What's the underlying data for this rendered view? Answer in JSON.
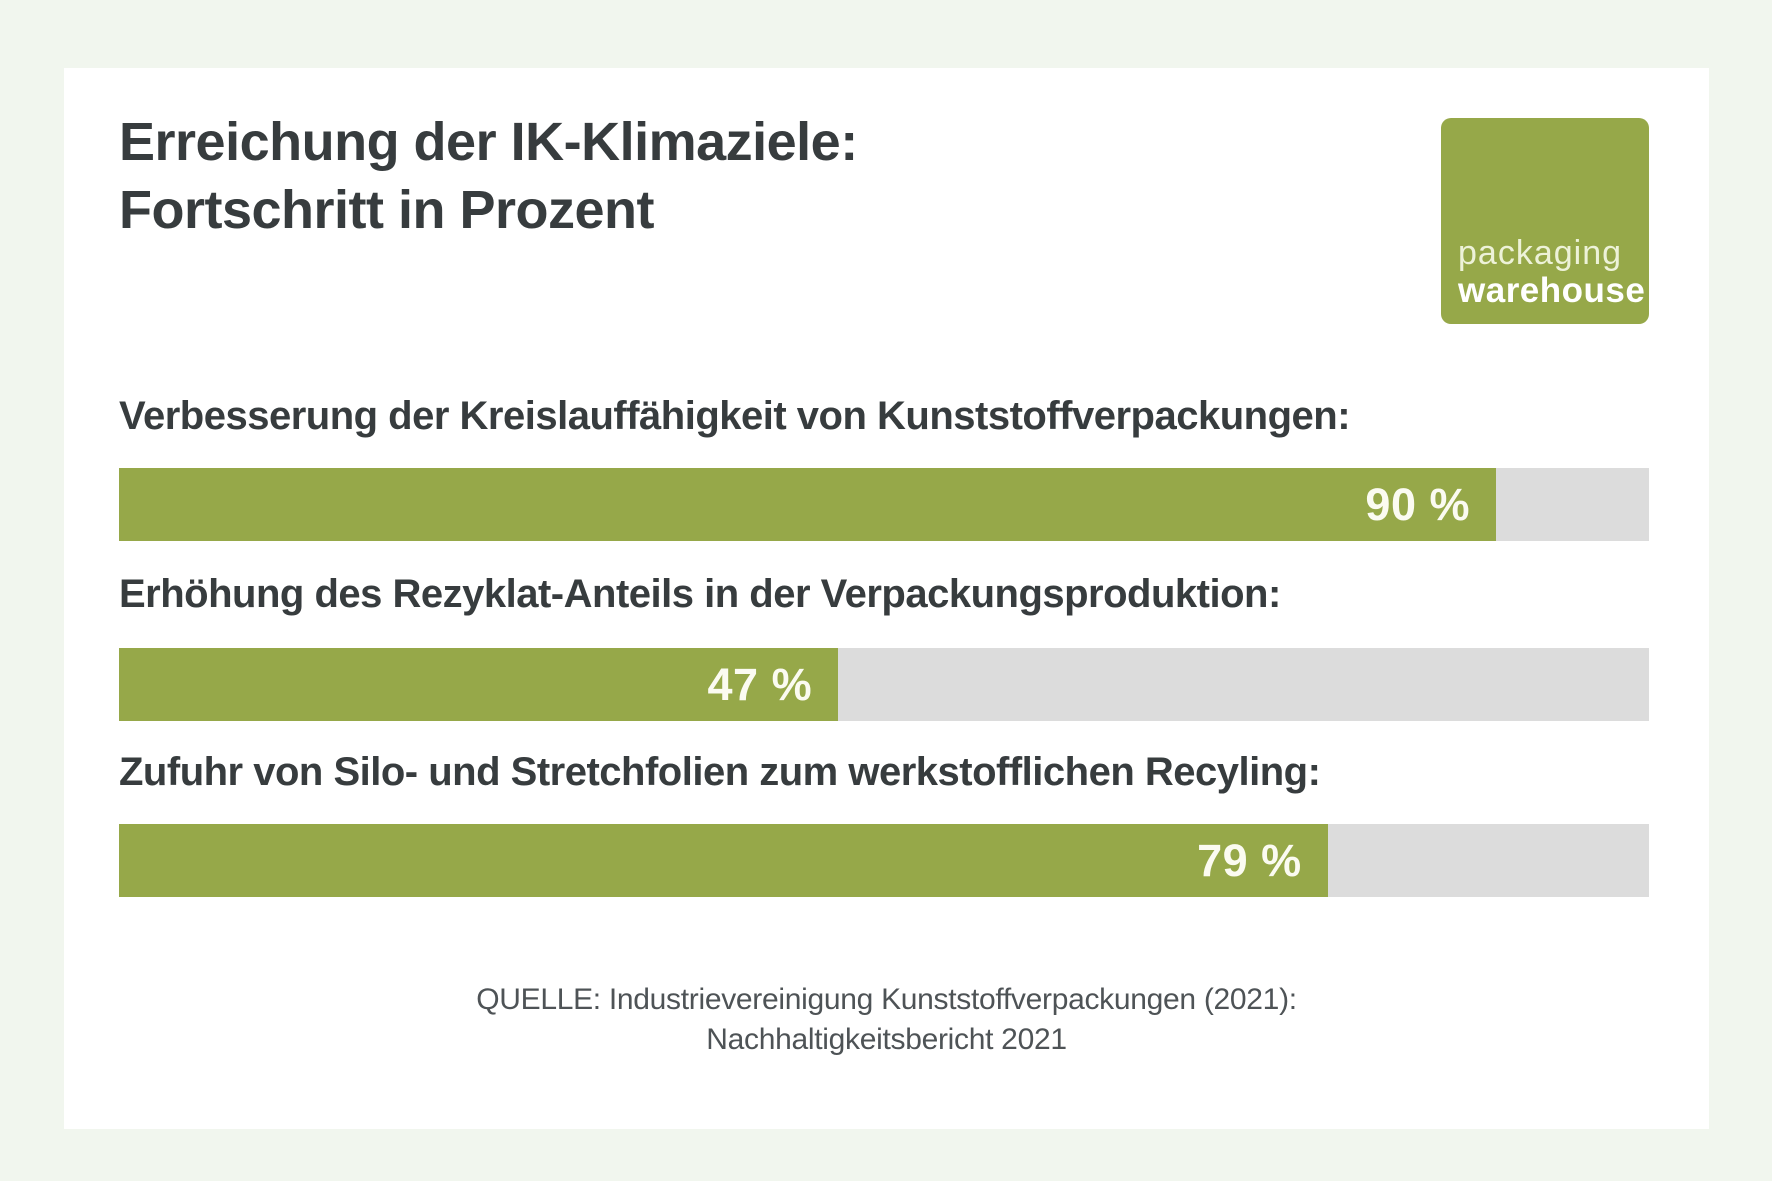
{
  "colors": {
    "bg": "#f1f6ee",
    "card": "#ffffff",
    "green": "#96a849",
    "track": "#dcdcdc",
    "heading": "#373c3e",
    "source": "#4e5356",
    "value-text": "#fbfbf1"
  },
  "header": {
    "title_line1": "Erreichung der IK-Klimaziele:",
    "title_line2": "Fortschritt in Prozent"
  },
  "logo": {
    "line1": "packaging",
    "line2": "warehouse"
  },
  "chart_data": {
    "type": "bar",
    "orientation": "horizontal",
    "title": "Erreichung der IK-Klimaziele: Fortschritt in Prozent",
    "unit": "%",
    "xlim": [
      0,
      100
    ],
    "grid": false,
    "legend": false,
    "categories": [
      "Verbesserung der Kreislauffähigkeit von Kunststoffverpackungen:",
      "Erhöhung des Rezyklat-Anteils in der Verpackungsproduktion:",
      "Zufuhr von Silo- und Stretchfolien zum werkstofflichen Recyling:"
    ],
    "values": [
      90,
      47,
      79
    ],
    "value_labels": [
      "90 %",
      "47 %",
      "79 %"
    ],
    "bar_color": "#96a849",
    "track_color": "#dcdcdc",
    "source": "QUELLE: Industrievereinigung Kunststoffverpackungen (2021): Nachhaltigkeitsbericht 2021"
  },
  "footer": {
    "source_line1": "QUELLE: Industrievereinigung Kunststoffverpackungen (2021):",
    "source_line2": "Nachhaltigkeitsbericht 2021"
  }
}
